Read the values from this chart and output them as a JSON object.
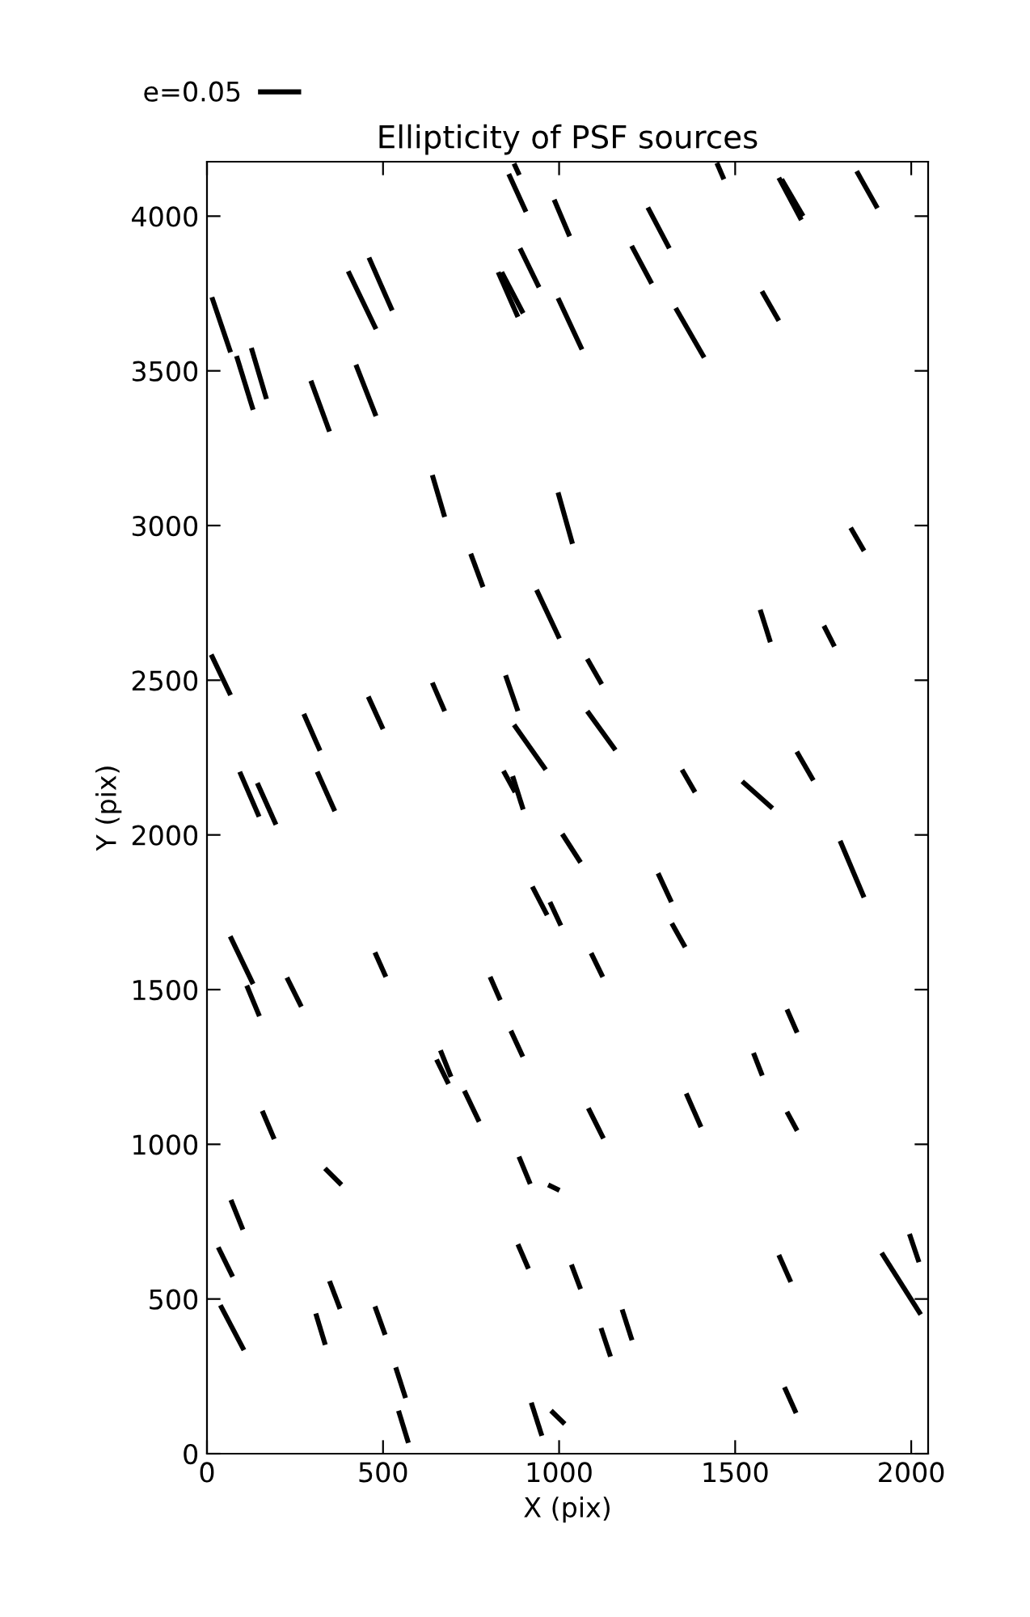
{
  "chart_data": {
    "type": "line",
    "title": "Ellipticity of PSF sources",
    "xlabel": "X (pix)",
    "ylabel": "Y (pix)",
    "xlim": [
      0,
      2048
    ],
    "ylim": [
      0,
      4176
    ],
    "xticks": [
      0,
      500,
      1000,
      1500,
      2000
    ],
    "yticks": [
      0,
      500,
      1000,
      1500,
      2000,
      2500,
      3000,
      3500,
      4000
    ],
    "grid": false,
    "legend": "top left",
    "marker": "none",
    "line_style": "solid",
    "color": "#000000",
    "series": [
      {
        "name": "e=0.05",
        "x": [
          857,
          906
        ],
        "values": [
          4136,
          4014
        ]
      },
      {
        "x": [
          872,
          887
        ],
        "values": [
          4170,
          4133
        ]
      },
      {
        "x": [
          986,
          1030
        ],
        "values": [
          4053,
          3935
        ]
      },
      {
        "x": [
          889,
          943
        ],
        "values": [
          3896,
          3770
        ]
      },
      {
        "x": [
          827,
          883
        ],
        "values": [
          3819,
          3674
        ]
      },
      {
        "x": [
          837,
          898
        ],
        "values": [
          3819,
          3686
        ]
      },
      {
        "x": [
          997,
          1065
        ],
        "values": [
          3735,
          3569
        ]
      },
      {
        "x": [
          401,
          480
        ],
        "values": [
          3822,
          3635
        ]
      },
      {
        "x": [
          460,
          526
        ],
        "values": [
          3866,
          3695
        ]
      },
      {
        "x": [
          14,
          67
        ],
        "values": [
          3738,
          3560
        ]
      },
      {
        "x": [
          84,
          131
        ],
        "values": [
          3548,
          3374
        ]
      },
      {
        "x": [
          126,
          169
        ],
        "values": [
          3574,
          3409
        ]
      },
      {
        "x": [
          295,
          348
        ],
        "values": [
          3468,
          3304
        ]
      },
      {
        "x": [
          423,
          480
        ],
        "values": [
          3520,
          3354
        ]
      },
      {
        "x": [
          640,
          675
        ],
        "values": [
          3163,
          3028
        ]
      },
      {
        "x": [
          997,
          1038
        ],
        "values": [
          3107,
          2941
        ]
      },
      {
        "x": [
          749,
          784
        ],
        "values": [
          2909,
          2801
        ]
      },
      {
        "x": [
          936,
          1001
        ],
        "values": [
          2792,
          2635
        ]
      },
      {
        "x": [
          1448,
          1468
        ],
        "values": [
          4172,
          4119
        ]
      },
      {
        "x": [
          1624,
          1688
        ],
        "values": [
          4124,
          3988
        ]
      },
      {
        "x": [
          1632,
          1693
        ],
        "values": [
          4119,
          4000
        ]
      },
      {
        "x": [
          1845,
          1904
        ],
        "values": [
          4145,
          4026
        ]
      },
      {
        "x": [
          1252,
          1313
        ],
        "values": [
          4028,
          3896
        ]
      },
      {
        "x": [
          1206,
          1263
        ],
        "values": [
          3904,
          3782
        ]
      },
      {
        "x": [
          1576,
          1624
        ],
        "values": [
          3757,
          3662
        ]
      },
      {
        "x": [
          1331,
          1412
        ],
        "values": [
          3703,
          3543
        ]
      },
      {
        "x": [
          1828,
          1866
        ],
        "values": [
          2993,
          2918
        ]
      },
      {
        "x": [
          12,
          67
        ],
        "values": [
          2583,
          2452
        ]
      },
      {
        "x": [
          275,
          321
        ],
        "values": [
          2391,
          2272
        ]
      },
      {
        "x": [
          458,
          500
        ],
        "values": [
          2447,
          2342
        ]
      },
      {
        "x": [
          640,
          675
        ],
        "values": [
          2492,
          2400
        ]
      },
      {
        "x": [
          848,
          883
        ],
        "values": [
          2516,
          2400
        ]
      },
      {
        "x": [
          872,
          962
        ],
        "values": [
          2356,
          2211
        ]
      },
      {
        "x": [
          93,
          148
        ],
        "values": [
          2204,
          2059
        ]
      },
      {
        "x": [
          143,
          196
        ],
        "values": [
          2168,
          2033
        ]
      },
      {
        "x": [
          313,
          363
        ],
        "values": [
          2204,
          2077
        ]
      },
      {
        "x": [
          842,
          875
        ],
        "values": [
          2207,
          2138
        ]
      },
      {
        "x": [
          868,
          898
        ],
        "values": [
          2190,
          2082
        ]
      },
      {
        "x": [
          1009,
          1061
        ],
        "values": [
          2003,
          1911
        ]
      },
      {
        "x": [
          924,
          966
        ],
        "values": [
          1833,
          1741
        ]
      },
      {
        "x": [
          974,
          1005
        ],
        "values": [
          1783,
          1707
        ]
      },
      {
        "x": [
          66,
          131
        ],
        "values": [
          1672,
          1518
        ]
      },
      {
        "x": [
          113,
          149
        ],
        "values": [
          1513,
          1414
        ]
      },
      {
        "x": [
          227,
          268
        ],
        "values": [
          1539,
          1445
        ]
      },
      {
        "x": [
          477,
          508
        ],
        "values": [
          1620,
          1541
        ]
      },
      {
        "x": [
          804,
          833
        ],
        "values": [
          1541,
          1466
        ]
      },
      {
        "x": [
          1571,
          1600
        ],
        "values": [
          2728,
          2623
        ]
      },
      {
        "x": [
          1752,
          1782
        ],
        "values": [
          2676,
          2609
        ]
      },
      {
        "x": [
          1080,
          1121
        ],
        "values": [
          2569,
          2487
        ]
      },
      {
        "x": [
          1080,
          1160
        ],
        "values": [
          2400,
          2274
        ]
      },
      {
        "x": [
          1349,
          1386
        ],
        "values": [
          2211,
          2138
        ]
      },
      {
        "x": [
          1520,
          1606
        ],
        "values": [
          2173,
          2086
        ]
      },
      {
        "x": [
          1675,
          1722
        ],
        "values": [
          2269,
          2176
        ]
      },
      {
        "x": [
          1281,
          1319
        ],
        "values": [
          1876,
          1783
        ]
      },
      {
        "x": [
          1798,
          1866
        ],
        "values": [
          1981,
          1798
        ]
      },
      {
        "x": [
          1320,
          1358
        ],
        "values": [
          1714,
          1637
        ]
      },
      {
        "x": [
          1091,
          1124
        ],
        "values": [
          1618,
          1541
        ]
      },
      {
        "x": [
          1647,
          1676
        ],
        "values": [
          1436,
          1361
        ]
      },
      {
        "x": [
          863,
          897
        ],
        "values": [
          1367,
          1283
        ]
      },
      {
        "x": [
          652,
          686
        ],
        "values": [
          1274,
          1195
        ]
      },
      {
        "x": [
          663,
          693
        ],
        "values": [
          1304,
          1218
        ]
      },
      {
        "x": [
          731,
          773
        ],
        "values": [
          1173,
          1073
        ]
      },
      {
        "x": [
          157,
          191
        ],
        "values": [
          1108,
          1017
        ]
      },
      {
        "x": [
          335,
          382
        ],
        "values": [
          922,
          869
        ]
      },
      {
        "x": [
          886,
          918
        ],
        "values": [
          960,
          872
        ]
      },
      {
        "x": [
          969,
          1001
        ],
        "values": [
          869,
          851
        ]
      },
      {
        "x": [
          68,
          102
        ],
        "values": [
          820,
          724
        ]
      },
      {
        "x": [
          32,
          73
        ],
        "values": [
          667,
          572
        ]
      },
      {
        "x": [
          883,
          913
        ],
        "values": [
          677,
          598
        ]
      },
      {
        "x": [
          1035,
          1061
        ],
        "values": [
          611,
          532
        ]
      },
      {
        "x": [
          38,
          105
        ],
        "values": [
          480,
          335
        ]
      },
      {
        "x": [
          348,
          378
        ],
        "values": [
          558,
          468
        ]
      },
      {
        "x": [
          309,
          336
        ],
        "values": [
          453,
          352
        ]
      },
      {
        "x": [
          477,
          506
        ],
        "values": [
          476,
          384
        ]
      },
      {
        "x": [
          536,
          564
        ],
        "values": [
          279,
          180
        ]
      },
      {
        "x": [
          544,
          572
        ],
        "values": [
          139,
          35
        ]
      },
      {
        "x": [
          921,
          951
        ],
        "values": [
          165,
          58
        ]
      },
      {
        "x": [
          977,
          1016
        ],
        "values": [
          139,
          96
        ]
      },
      {
        "x": [
          1552,
          1577
        ],
        "values": [
          1295,
          1222
        ]
      },
      {
        "x": [
          1083,
          1126
        ],
        "values": [
          1117,
          1019
        ]
      },
      {
        "x": [
          1361,
          1403
        ],
        "values": [
          1164,
          1056
        ]
      },
      {
        "x": [
          1647,
          1676
        ],
        "values": [
          1105,
          1044
        ]
      },
      {
        "x": [
          1624,
          1658
        ],
        "values": [
          642,
          555
        ]
      },
      {
        "x": [
          1916,
          2027
        ],
        "values": [
          649,
          450
        ]
      },
      {
        "x": [
          1995,
          2022
        ],
        "values": [
          710,
          619
        ]
      },
      {
        "x": [
          1119,
          1146
        ],
        "values": [
          406,
          314
        ]
      },
      {
        "x": [
          1179,
          1207
        ],
        "values": [
          466,
          367
        ]
      },
      {
        "x": [
          1640,
          1673
        ],
        "values": [
          215,
          131
        ]
      }
    ]
  }
}
